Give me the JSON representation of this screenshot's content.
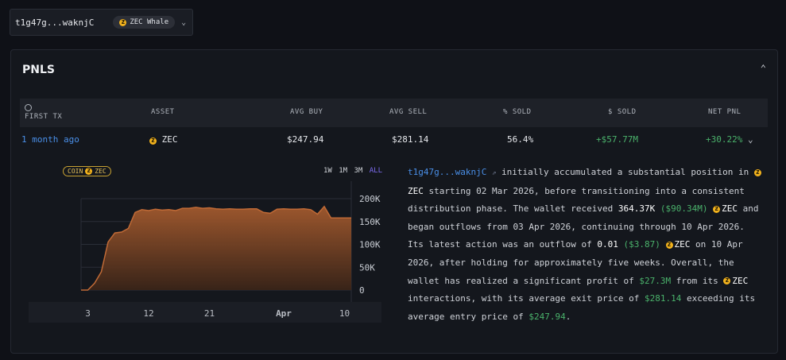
{
  "wallet": {
    "address": "t1g47g...waknjC",
    "badge": "ZEC Whale"
  },
  "pnls": {
    "title": "PNLS",
    "columns": [
      "FIRST TX",
      "ASSET",
      "AVG BUY",
      "AVG SELL",
      "% SOLD",
      "$ SOLD",
      "NET PNL"
    ],
    "row": {
      "first_tx": "1 month ago",
      "asset": "ZEC",
      "avg_buy": "$247.94",
      "avg_sell": "$281.14",
      "pct_sold": "56.4%",
      "usd_sold": "+$57.77M",
      "net_pnl": "+30.22%"
    }
  },
  "chart": {
    "coin_pill": "COIN",
    "coin_symbol": "ZEC",
    "timeframes": [
      "1W",
      "1M",
      "3M",
      "ALL"
    ],
    "active_timeframe": "ALL",
    "accent": "#7d6cf0",
    "area_color": "#c06a36"
  },
  "chart_data": {
    "type": "area",
    "x": [
      "Mar 2",
      "Mar 3",
      "Mar 4",
      "Mar 5",
      "Mar 6",
      "Mar 7",
      "Mar 8",
      "Mar 9",
      "Mar 10",
      "Mar 11",
      "Mar 12",
      "Mar 13",
      "Mar 14",
      "Mar 15",
      "Mar 16",
      "Mar 17",
      "Mar 18",
      "Mar 19",
      "Mar 20",
      "Mar 21",
      "Mar 22",
      "Mar 23",
      "Mar 24",
      "Mar 25",
      "Mar 26",
      "Mar 27",
      "Mar 28",
      "Mar 29",
      "Mar 30",
      "Mar 31",
      "Apr 1",
      "Apr 2",
      "Apr 3",
      "Apr 4",
      "Apr 5",
      "Apr 6",
      "Apr 7",
      "Apr 8",
      "Apr 9",
      "Apr 10",
      "Apr 11"
    ],
    "values": [
      0,
      0,
      15000,
      40000,
      105000,
      125000,
      127000,
      135000,
      170000,
      176000,
      174000,
      177000,
      175000,
      176000,
      174000,
      179000,
      179000,
      181000,
      179000,
      180000,
      178000,
      177000,
      178000,
      177000,
      177000,
      178000,
      178000,
      170000,
      168000,
      177000,
      178000,
      177000,
      177000,
      178000,
      176000,
      166000,
      183000,
      158000,
      158000,
      158000,
      158000
    ],
    "x_ticks": [
      "3",
      "12",
      "21",
      "Apr",
      "10"
    ],
    "y_ticks": [
      "200K",
      "150K",
      "100K",
      "50K",
      "0"
    ],
    "ylim": [
      0,
      200000
    ],
    "grid": true
  },
  "summary": {
    "address": "t1g47g...waknjC",
    "t1": " initially accumulated a substantial position in ",
    "zec": "ZEC",
    "t2": " starting 02 Mar 2026, before transitioning into a consistent distribution phase. The wallet received ",
    "received": "364.37K",
    "received_usd": "($90.34M)",
    "t3": " and began outflows from 03 Apr 2026, continuing through 10 Apr 2026. Its latest action was an outflow of ",
    "outflow": "0.01",
    "outflow_usd": "($3.87)",
    "t4": " on 10 Apr 2026, after holding for approximately five weeks. Overall, the wallet has realized a significant profit of ",
    "profit": "$27.3M",
    "t5": " from its ",
    "t6": " interactions, with its average exit price of ",
    "exit_price": "$281.14",
    "t7": " exceeding its average entry price of ",
    "entry_price": "$247.94",
    "t8": "."
  }
}
